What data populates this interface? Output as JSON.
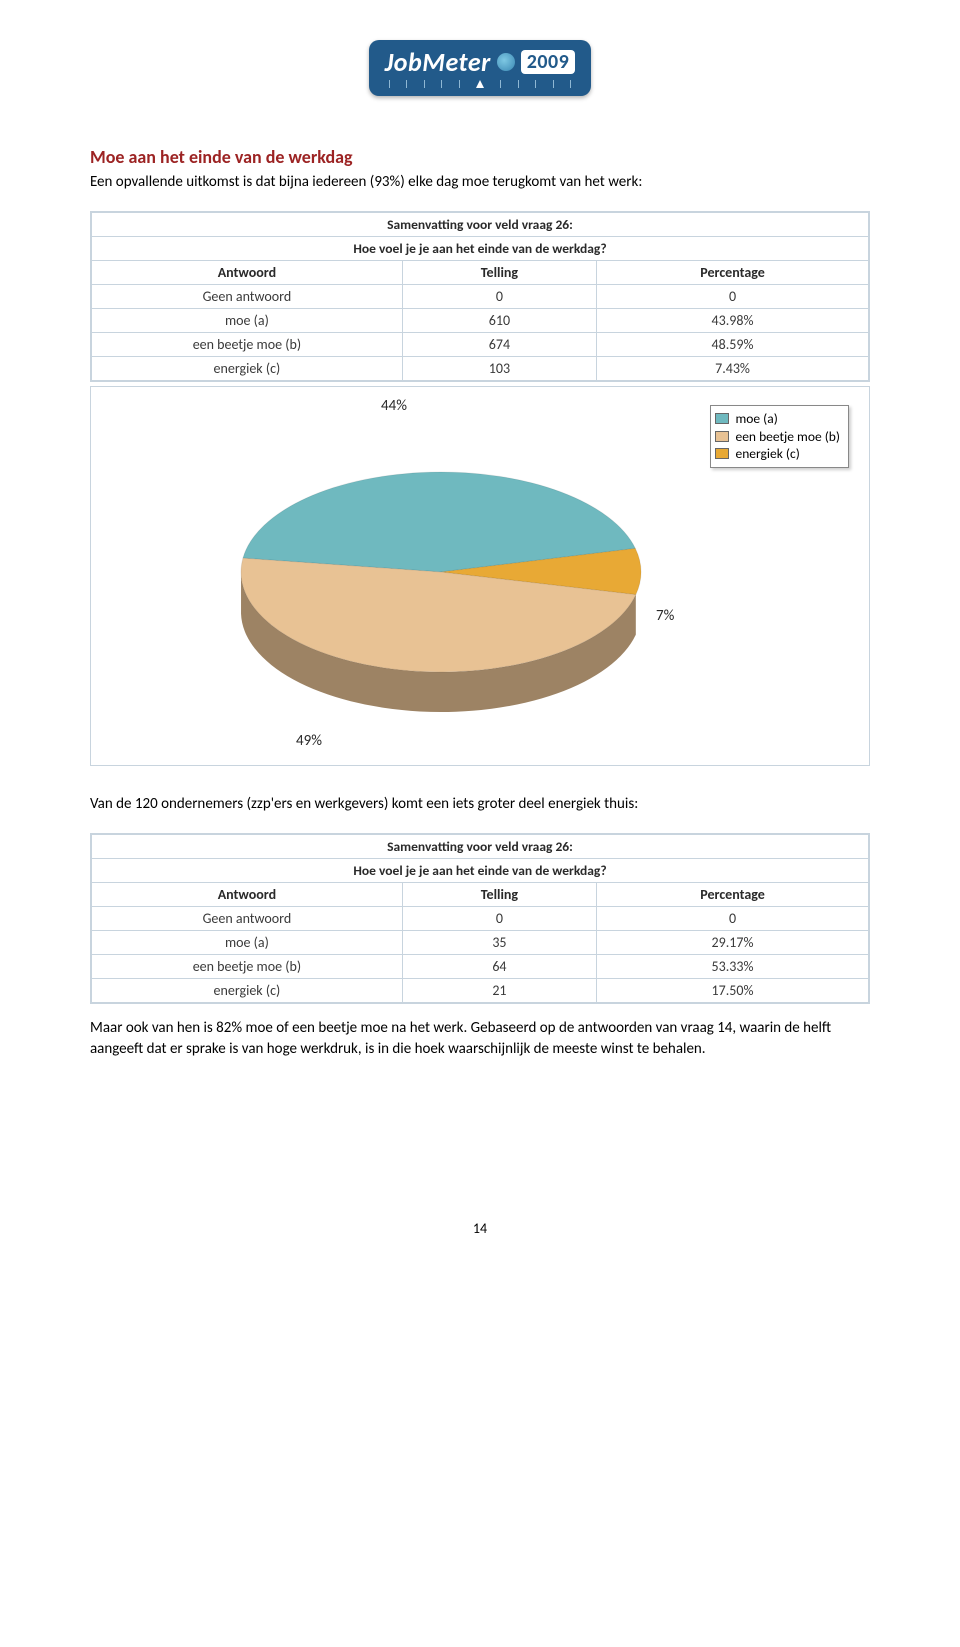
{
  "logo": {
    "brand": "JobMeter",
    "year": "2009"
  },
  "section_title": "Moe aan het einde van de werkdag",
  "intro_text": "Een opvallende uitkomst is dat bijna iedereen (93%) elke dag moe terugkomt van het werk:",
  "table1": {
    "caption1": "Samenvatting voor veld vraag 26:",
    "caption2": "Hoe voel je je aan het einde van de werkdag?",
    "headers": [
      "Antwoord",
      "Telling",
      "Percentage"
    ],
    "rows": [
      [
        "Geen antwoord",
        "0",
        "0"
      ],
      [
        "moe (a)",
        "610",
        "43.98%"
      ],
      [
        "een beetje moe (b)",
        "674",
        "48.59%"
      ],
      [
        "energiek (c)",
        "103",
        "7.43%"
      ]
    ]
  },
  "pie": {
    "slices": [
      {
        "label": "moe (a)",
        "value": 43.98,
        "color": "#6fb9bf",
        "display": "44%"
      },
      {
        "label": "een beetje moe (b)",
        "value": 48.59,
        "color": "#e8c294",
        "display": "49%"
      },
      {
        "label": "energiek (c)",
        "value": 7.43,
        "color": "#e8a935",
        "display": "7%"
      }
    ],
    "colors": {
      "slice1_top": "#6fb9bf",
      "slice1_side": "#4d8e95",
      "slice2_top": "#e8c294",
      "slice2_side": "#c49a68",
      "slice3_top": "#e8a935",
      "slice3_side": "#b37d20"
    }
  },
  "mid_text": "Van de 120 ondernemers (zzp'ers en werkgevers) komt een iets groter deel energiek thuis:",
  "table2": {
    "caption1": "Samenvatting voor veld vraag 26:",
    "caption2": "Hoe voel je je aan het einde van de werkdag?",
    "headers": [
      "Antwoord",
      "Telling",
      "Percentage"
    ],
    "rows": [
      [
        "Geen antwoord",
        "0",
        "0"
      ],
      [
        "moe (a)",
        "35",
        "29.17%"
      ],
      [
        "een beetje moe (b)",
        "64",
        "53.33%"
      ],
      [
        "energiek (c)",
        "21",
        "17.50%"
      ]
    ]
  },
  "closing_text": "Maar ook van hen is 82% moe of een beetje moe na het werk. Gebaseerd op de antwoorden van vraag 14, waarin de helft aangeeft dat er sprake is van hoge werkdruk, is in die hoek waarschijnlijk de meeste winst te behalen.",
  "page_number": "14"
}
